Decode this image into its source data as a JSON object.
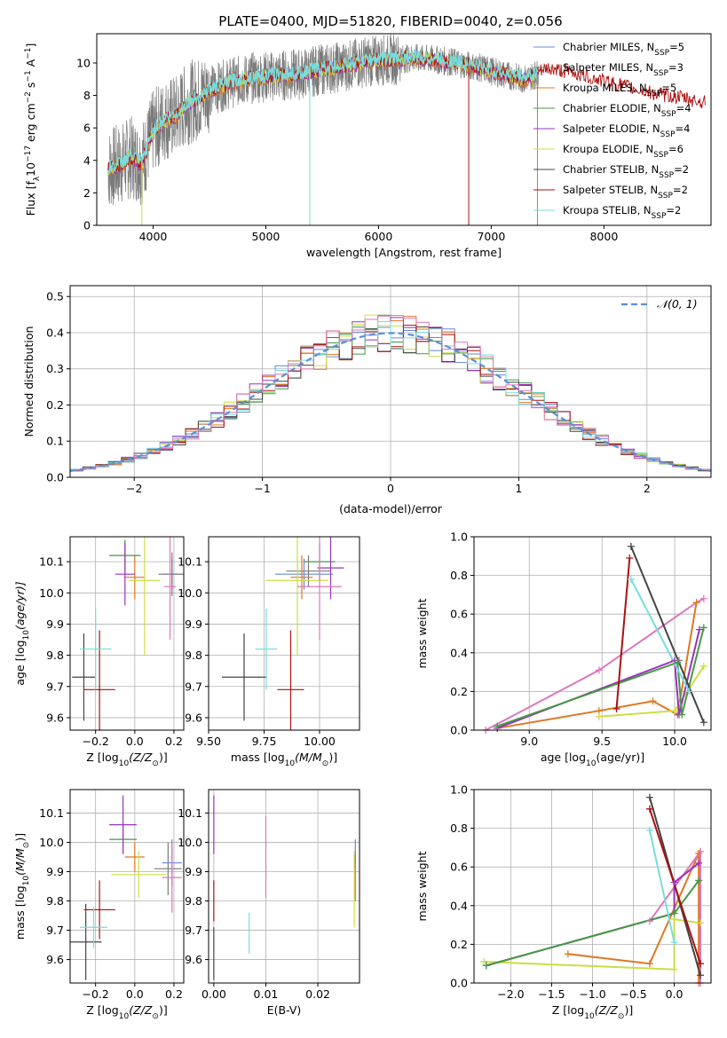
{
  "figure_title": "PLATE=0400, MJD=51820, FIBERID=0040, z=0.056",
  "legend_ssp": [
    "Chabrier MILES, N",
    "Salpeter MILES, N",
    "Kroupa MILES, N",
    "Chabrier ELODIE, N",
    "Salpeter ELODIE, N",
    "Kroupa ELODIE, N",
    "Chabrier STELIB, N",
    "Salpeter STELIB, N",
    "Kroupa STELIB, N"
  ],
  "legend_ssp_sub": "SSP",
  "legend_ssp_counts": [
    "=5",
    "=3",
    "=5",
    "=4",
    "=4",
    "=6",
    "=2",
    "=2",
    "=2"
  ],
  "colors": [
    "#6688dd",
    "#7a7a7a",
    "#dd7722",
    "#449944",
    "#9933bb",
    "#ccdd44",
    "#444444",
    "#aa1111",
    "#77dddd"
  ],
  "colors_extra": [
    "#dd77bb",
    "#7fbfdf"
  ],
  "chart_data": [
    {
      "type": "line",
      "panel": "spectrum",
      "xlabel": "wavelength [Angstrom, rest frame]",
      "ylabel_main": "Flux [f",
      "ylabel_sub": "λ",
      "ylabel_rest": "10",
      "ylabel_exp": "−17",
      "ylabel_units": " erg cm",
      "ylabel_exp2": "−2",
      "ylabel_units2": " s",
      "ylabel_exp3": "−1",
      "ylabel_units3": " A",
      "ylabel_exp4": "−1",
      "ylabel_end": "]",
      "xlim": [
        3500,
        8950
      ],
      "ylim": [
        0,
        11.8
      ],
      "xticks": [
        "4000",
        "5000",
        "6000",
        "7000",
        "8000"
      ],
      "xtick_values": [
        4000,
        5000,
        6000,
        7000,
        8000
      ],
      "yticks": [
        "0",
        "2",
        "4",
        "6",
        "8",
        "10"
      ],
      "ytick_values": [
        0,
        2,
        4,
        6,
        8,
        10
      ],
      "continuum_x": [
        3600,
        3700,
        3800,
        3900,
        4000,
        4100,
        4200,
        4300,
        4400,
        4500,
        4700,
        4900,
        5100,
        5300,
        5500,
        5700,
        5900,
        6100,
        6300,
        6500,
        6700,
        6900,
        7100,
        7300,
        7500,
        7700,
        7900,
        8100,
        8300,
        8500,
        8700,
        8900
      ],
      "continuum_y": [
        3.5,
        3.7,
        4.2,
        3.8,
        5.8,
        6.5,
        6.7,
        7.5,
        7.8,
        8.3,
        8.8,
        9.1,
        9.2,
        9.3,
        9.6,
        9.8,
        10.1,
        10.2,
        10.3,
        10.2,
        10.0,
        9.7,
        9.3,
        9.0,
        9.6,
        9.4,
        9.0,
        8.7,
        8.3,
        8.0,
        7.8,
        7.5
      ]
    },
    {
      "type": "line",
      "panel": "residual-distribution",
      "xlabel": "(data-model)/error",
      "ylabel": "Normed distribution",
      "legend": "𝒩(0, 1)",
      "xlim": [
        -2.5,
        2.5
      ],
      "ylim": [
        0,
        0.53
      ],
      "xticks": [
        "−2",
        "−1",
        "0",
        "1",
        "2"
      ],
      "xtick_values": [
        -2,
        -1,
        0,
        1,
        2
      ],
      "yticks": [
        "0.0",
        "0.1",
        "0.2",
        "0.3",
        "0.4",
        "0.5"
      ],
      "ytick_values": [
        0,
        0.1,
        0.2,
        0.3,
        0.4,
        0.5
      ],
      "gaussian_mean": 0,
      "gaussian_sigma": 1
    },
    {
      "type": "scatter",
      "panel": "Z-vs-age",
      "xlabel": "Z [log",
      "xlabel_sub": "10",
      "xlabel_rest": "(Z/Z",
      "xlabel_sun": "⊙",
      "xlabel_end": ")]",
      "ylabel": "age  [log",
      "ylabel_sub": "10",
      "ylabel_rest": "(age/yr)]",
      "xlim": [
        -0.33,
        0.25
      ],
      "ylim": [
        9.56,
        10.18
      ],
      "xticks": [
        "−0.2",
        "0.0",
        "0.2"
      ],
      "xtick_values": [
        -0.2,
        0,
        0.2
      ],
      "yticks": [
        "9.6",
        "9.7",
        "9.8",
        "9.9",
        "10.0",
        "10.1"
      ],
      "ytick_values": [
        9.6,
        9.7,
        9.8,
        9.9,
        10.0,
        10.1
      ],
      "points": [
        {
          "x": 0.19,
          "y": 10.06,
          "xerr": 0.05,
          "yerr": 0.05,
          "c": 0
        },
        {
          "x": 0.19,
          "y": 10.06,
          "xerr": 0.07,
          "yerr": 0.07,
          "c": 1
        },
        {
          "x": 0.0,
          "y": 10.05,
          "xerr": 0.05,
          "yerr": 0.07,
          "c": 2
        },
        {
          "x": -0.05,
          "y": 10.12,
          "xerr": 0.08,
          "yerr": 0.05,
          "c": 3
        },
        {
          "x": -0.05,
          "y": 10.06,
          "xerr": 0.05,
          "yerr": 0.1,
          "c": 4
        },
        {
          "x": 0.05,
          "y": 10.04,
          "xerr": 0.08,
          "yerr": 0.24,
          "c": 5
        },
        {
          "x": -0.26,
          "y": 9.73,
          "xerr": 0.06,
          "yerr": 0.14,
          "c": 6
        },
        {
          "x": -0.18,
          "y": 9.69,
          "xerr": 0.08,
          "yerr": 0.19,
          "c": 7
        },
        {
          "x": -0.2,
          "y": 9.82,
          "xerr": 0.08,
          "yerr": 0.13,
          "c": 8
        },
        {
          "x": 0.18,
          "y": 10.02,
          "xerr": 0.03,
          "yerr": 0.17,
          "c": 9
        }
      ]
    },
    {
      "type": "scatter",
      "panel": "mass-vs-age",
      "xlabel": "mass [log",
      "xlabel_sub": "10",
      "xlabel_rest": "(M/M",
      "xlabel_sun": "⊙",
      "xlabel_end": ")]",
      "xlim": [
        9.5,
        10.18
      ],
      "ylim": [
        9.56,
        10.18
      ],
      "xticks": [
        "9.50",
        "9.75",
        "10.00"
      ],
      "xtick_values": [
        9.5,
        9.75,
        10.0
      ],
      "yticks": [
        "9.6",
        "9.7",
        "9.8",
        "9.9",
        "10.0",
        "10.1"
      ],
      "ytick_values": [
        9.6,
        9.7,
        9.8,
        9.9,
        10.0,
        10.1
      ],
      "points": [
        {
          "x": 9.93,
          "y": 10.06,
          "xerr": 0.13,
          "yerr": 0.05,
          "c": 0
        },
        {
          "x": 9.95,
          "y": 10.07,
          "xerr": 0.1,
          "yerr": 0.05,
          "c": 1
        },
        {
          "x": 9.92,
          "y": 10.05,
          "xerr": 0.05,
          "yerr": 0.07,
          "c": 2
        },
        {
          "x": 10.0,
          "y": 10.1,
          "xerr": 0.07,
          "yerr": 0.06,
          "c": 3
        },
        {
          "x": 10.05,
          "y": 10.08,
          "xerr": 0.06,
          "yerr": 0.1,
          "c": 4
        },
        {
          "x": 9.9,
          "y": 10.04,
          "xerr": 0.14,
          "yerr": 0.24,
          "c": 5
        },
        {
          "x": 9.66,
          "y": 9.73,
          "xerr": 0.1,
          "yerr": 0.14,
          "c": 6
        },
        {
          "x": 9.87,
          "y": 9.69,
          "xerr": 0.06,
          "yerr": 0.19,
          "c": 7
        },
        {
          "x": 9.76,
          "y": 9.82,
          "xerr": 0.05,
          "yerr": 0.13,
          "c": 8
        },
        {
          "x": 10.0,
          "y": 10.02,
          "xerr": 0.1,
          "yerr": 0.17,
          "c": 9
        }
      ]
    },
    {
      "type": "line",
      "panel": "mass-weight-vs-age",
      "xlabel": "age  [log",
      "xlabel_sub": "10",
      "xlabel_rest": "(age/yr)]",
      "ylabel": "mass weight",
      "xlim": [
        8.62,
        10.25
      ],
      "ylim": [
        0,
        1.0
      ],
      "xticks": [
        "9.0",
        "9.5",
        "10.0"
      ],
      "xtick_values": [
        9.0,
        9.5,
        10.0
      ],
      "yticks": [
        "0.0",
        "0.2",
        "0.4",
        "0.6",
        "0.8",
        "1.0"
      ],
      "ytick_values": [
        0,
        0.2,
        0.4,
        0.6,
        0.8,
        1.0
      ],
      "series": [
        {
          "c": 9,
          "x": [
            8.7,
            9.48,
            10.15,
            10.2
          ],
          "y": [
            0.0,
            0.31,
            0.66,
            0.68
          ]
        },
        {
          "c": 2,
          "x": [
            8.78,
            9.48,
            9.85,
            10.02,
            10.15
          ],
          "y": [
            0.01,
            0.1,
            0.15,
            0.08,
            0.66
          ]
        },
        {
          "c": 5,
          "x": [
            9.48,
            10.0,
            10.2
          ],
          "y": [
            0.07,
            0.1,
            0.33
          ]
        },
        {
          "c": 4,
          "x": [
            8.78,
            10.0,
            10.03,
            10.17
          ],
          "y": [
            0.01,
            0.36,
            0.08,
            0.52
          ]
        },
        {
          "c": 3,
          "x": [
            8.78,
            10.02,
            10.05,
            10.2
          ],
          "y": [
            0.02,
            0.35,
            0.08,
            0.53
          ]
        },
        {
          "c": 6,
          "x": [
            9.7,
            10.2
          ],
          "y": [
            0.95,
            0.04
          ]
        },
        {
          "c": 7,
          "x": [
            9.6,
            9.69
          ],
          "y": [
            0.11,
            0.89
          ]
        },
        {
          "c": 8,
          "x": [
            9.7,
            10.1
          ],
          "y": [
            0.78,
            0.2
          ]
        },
        {
          "c": 1,
          "x": [
            10.03
          ],
          "y": [
            0.36
          ]
        }
      ]
    },
    {
      "type": "scatter",
      "panel": "Z-vs-mass",
      "xlabel": "Z [log",
      "xlabel_sub": "10",
      "xlabel_rest": "(Z/Z",
      "xlabel_sun": "⊙",
      "xlabel_end": ")]",
      "ylabel": "mass [log",
      "ylabel_sub": "10",
      "ylabel_rest": "(M/M",
      "ylabel_sun": "⊙",
      "ylabel_end": ")]",
      "xlim": [
        -0.33,
        0.25
      ],
      "ylim": [
        9.52,
        10.18
      ],
      "xticks": [
        "−0.2",
        "0.0",
        "0.2"
      ],
      "xtick_values": [
        -0.2,
        0,
        0.2
      ],
      "yticks": [
        "9.6",
        "9.7",
        "9.8",
        "9.9",
        "10.0",
        "10.1"
      ],
      "ytick_values": [
        9.6,
        9.7,
        9.8,
        9.9,
        10.0,
        10.1
      ],
      "points": [
        {
          "x": 0.19,
          "y": 9.93,
          "xerr": 0.05,
          "yerr": 0.08,
          "c": 0
        },
        {
          "x": 0.17,
          "y": 9.91,
          "xerr": 0.07,
          "yerr": 0.09,
          "c": 1
        },
        {
          "x": 0.0,
          "y": 9.95,
          "xerr": 0.05,
          "yerr": 0.05,
          "c": 2
        },
        {
          "x": -0.06,
          "y": 10.01,
          "xerr": 0.07,
          "yerr": 0.05,
          "c": 3
        },
        {
          "x": -0.06,
          "y": 10.06,
          "xerr": 0.07,
          "yerr": 0.1,
          "c": 4
        },
        {
          "x": 0.02,
          "y": 9.89,
          "xerr": 0.14,
          "yerr": 0.08,
          "c": 5
        },
        {
          "x": -0.25,
          "y": 9.66,
          "xerr": 0.08,
          "yerr": 0.13,
          "c": 6
        },
        {
          "x": -0.18,
          "y": 9.77,
          "xerr": 0.08,
          "yerr": 0.1,
          "c": 7
        },
        {
          "x": -0.21,
          "y": 9.71,
          "xerr": 0.07,
          "yerr": 0.07,
          "c": 8
        },
        {
          "x": 0.19,
          "y": 9.88,
          "xerr": 0.05,
          "yerr": 0.12,
          "c": 9
        }
      ]
    },
    {
      "type": "scatter",
      "panel": "EBV-vs-mass",
      "xlabel": "E(B-V)",
      "xlim": [
        -0.001,
        0.028
      ],
      "ylim": [
        9.52,
        10.18
      ],
      "xticks": [
        "0.00",
        "0.01",
        "0.02"
      ],
      "xtick_values": [
        0,
        0.01,
        0.02
      ],
      "yticks": [
        "9.6",
        "9.7",
        "9.8",
        "9.9",
        "10.0",
        "10.1"
      ],
      "ytick_values": [
        9.6,
        9.7,
        9.8,
        9.9,
        10.0,
        10.1
      ],
      "points": [
        {
          "x": 0.0,
          "y": 10.06,
          "xerr": 0,
          "yerr": 0.1,
          "c": 4
        },
        {
          "x": 0.0,
          "y": 9.8,
          "xerr": 0,
          "yerr": 0.07,
          "c": 7
        },
        {
          "x": 0.0,
          "y": 9.62,
          "xerr": 0,
          "yerr": 0.09,
          "c": 6
        },
        {
          "x": 0.0068,
          "y": 9.69,
          "xerr": 0,
          "yerr": 0.07,
          "c": 8
        },
        {
          "x": 0.01,
          "y": 9.95,
          "xerr": 0,
          "yerr": 0.14,
          "c": 9
        },
        {
          "x": 0.027,
          "y": 9.84,
          "xerr": 0,
          "yerr": 0.13,
          "c": 5
        },
        {
          "x": 0.0272,
          "y": 9.96,
          "xerr": 0,
          "yerr": 0.05,
          "c": 0
        },
        {
          "x": 0.0272,
          "y": 9.88,
          "xerr": 0,
          "yerr": 0.08,
          "c": 2
        }
      ]
    },
    {
      "type": "line",
      "panel": "mass-weight-vs-Z",
      "xlabel": "Z [log",
      "xlabel_sub": "10",
      "xlabel_rest": "(Z/Z",
      "xlabel_sun": "⊙",
      "xlabel_end": ")]",
      "ylabel": "mass weight",
      "xlim": [
        -2.45,
        0.45
      ],
      "ylim": [
        0,
        1.0
      ],
      "xticks": [
        "−2.0",
        "−1.5",
        "−1.0",
        "−0.5",
        "0.0"
      ],
      "xtick_values": [
        -2.0,
        -1.5,
        -1.0,
        -0.5,
        0.0
      ],
      "yticks": [
        "0.0",
        "0.2",
        "0.4",
        "0.6",
        "0.8",
        "1.0"
      ],
      "ytick_values": [
        0,
        0.2,
        0.4,
        0.6,
        0.8,
        1.0
      ],
      "series": [
        {
          "c": 5,
          "x": [
            -2.33,
            0.0,
            0.0,
            0.32
          ],
          "y": [
            0.11,
            0.07,
            0.33,
            0.31
          ]
        },
        {
          "c": 2,
          "x": [
            -1.3,
            -0.3,
            0.3,
            0.3
          ],
          "y": [
            0.15,
            0.1,
            0.67,
            0.0
          ]
        },
        {
          "c": 9,
          "x": [
            -0.3,
            0.32,
            0.32
          ],
          "y": [
            0.32,
            0.68,
            0.0
          ]
        },
        {
          "c": 4,
          "x": [
            -2.3,
            0.0,
            0.0,
            0.3
          ],
          "y": [
            0.09,
            0.36,
            0.52,
            0.62
          ]
        },
        {
          "c": 3,
          "x": [
            -2.3,
            0.0,
            0.3
          ],
          "y": [
            0.09,
            0.36,
            0.53
          ]
        },
        {
          "c": 6,
          "x": [
            -0.3,
            0.32
          ],
          "y": [
            0.96,
            0.04
          ]
        },
        {
          "c": 7,
          "x": [
            -0.3,
            0.32
          ],
          "y": [
            0.9,
            0.1
          ]
        },
        {
          "c": 8,
          "x": [
            -0.3,
            0.0
          ],
          "y": [
            0.79,
            0.21
          ]
        }
      ]
    }
  ]
}
